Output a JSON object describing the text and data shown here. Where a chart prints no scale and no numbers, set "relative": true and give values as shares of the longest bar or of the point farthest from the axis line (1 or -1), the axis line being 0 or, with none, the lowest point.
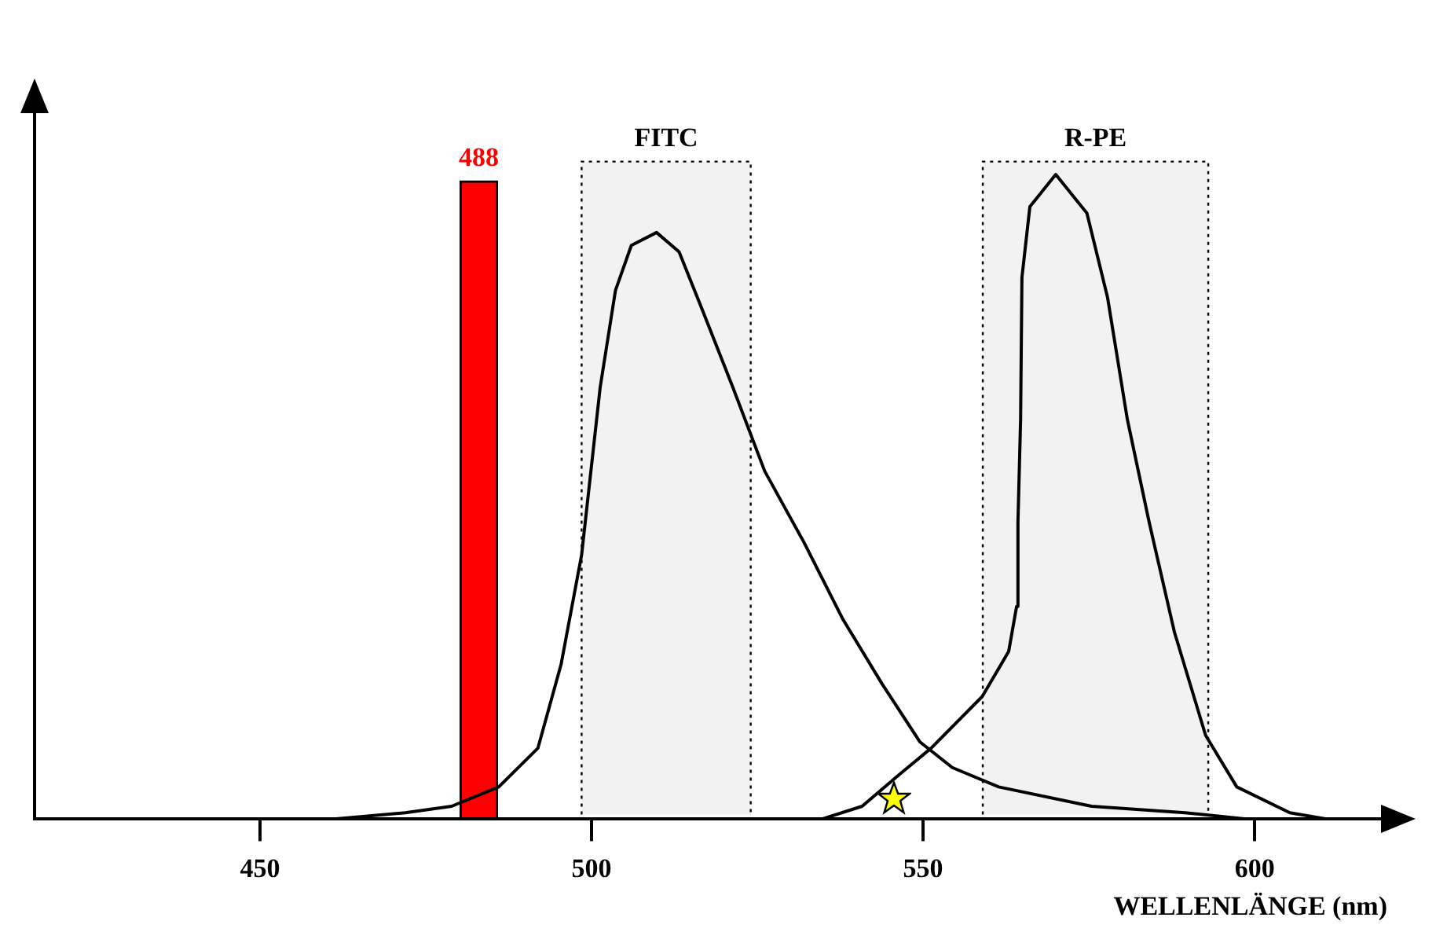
{
  "chart_data": {
    "type": "line",
    "relative": true,
    "xlabel": "WELLENLÄNGE (nm)",
    "xlim": [
      416,
      620
    ],
    "xticks": [
      450,
      500,
      550,
      600
    ],
    "grid": false,
    "legend": false,
    "series": [
      {
        "name": "488",
        "type": "bar",
        "color": "#ff0000",
        "x": [
          483
        ],
        "values": [
          0.99
        ]
      },
      {
        "color": "#000000",
        "x": [
          460.8,
          471.9,
          478.9,
          486.0,
          491.9,
          495.4,
          498.5,
          501.3,
          503.6,
          506.0,
          509.8,
          513.2,
          516.7,
          521.3,
          526.1,
          532.0,
          537.9,
          543.8,
          549.5,
          554.4,
          561.4,
          575.4,
          589.5,
          599.0
        ],
        "values": [
          0.0,
          0.01,
          0.02,
          0.05,
          0.11,
          0.24,
          0.41,
          0.67,
          0.82,
          0.89,
          0.91,
          0.88,
          0.79,
          0.67,
          0.54,
          0.43,
          0.31,
          0.21,
          0.12,
          0.08,
          0.05,
          0.02,
          0.01,
          0.0
        ]
      },
      {
        "color": "#000000",
        "x": [
          534.7,
          540.8,
          546.5,
          551.2,
          558.9,
          562.9,
          564.1,
          564.3,
          564.7,
          564.9,
          566.1,
          570.0,
          574.7,
          577.8,
          580.8,
          584.1,
          587.9,
          592.6,
          597.3,
          605.3,
          611.0
        ],
        "values": [
          0.0,
          0.02,
          0.07,
          0.11,
          0.19,
          0.26,
          0.33,
          0.46,
          0.62,
          0.84,
          0.95,
          1.0,
          0.94,
          0.81,
          0.62,
          0.46,
          0.29,
          0.13,
          0.05,
          0.01,
          0.0
        ]
      }
    ],
    "bands": [
      {
        "axis": "x",
        "from": 498.5,
        "to": 524,
        "label": "FITC",
        "color": "#000000"
      },
      {
        "axis": "x",
        "from": 559,
        "to": 593,
        "label": "R-PE",
        "color": "#000000"
      }
    ]
  }
}
